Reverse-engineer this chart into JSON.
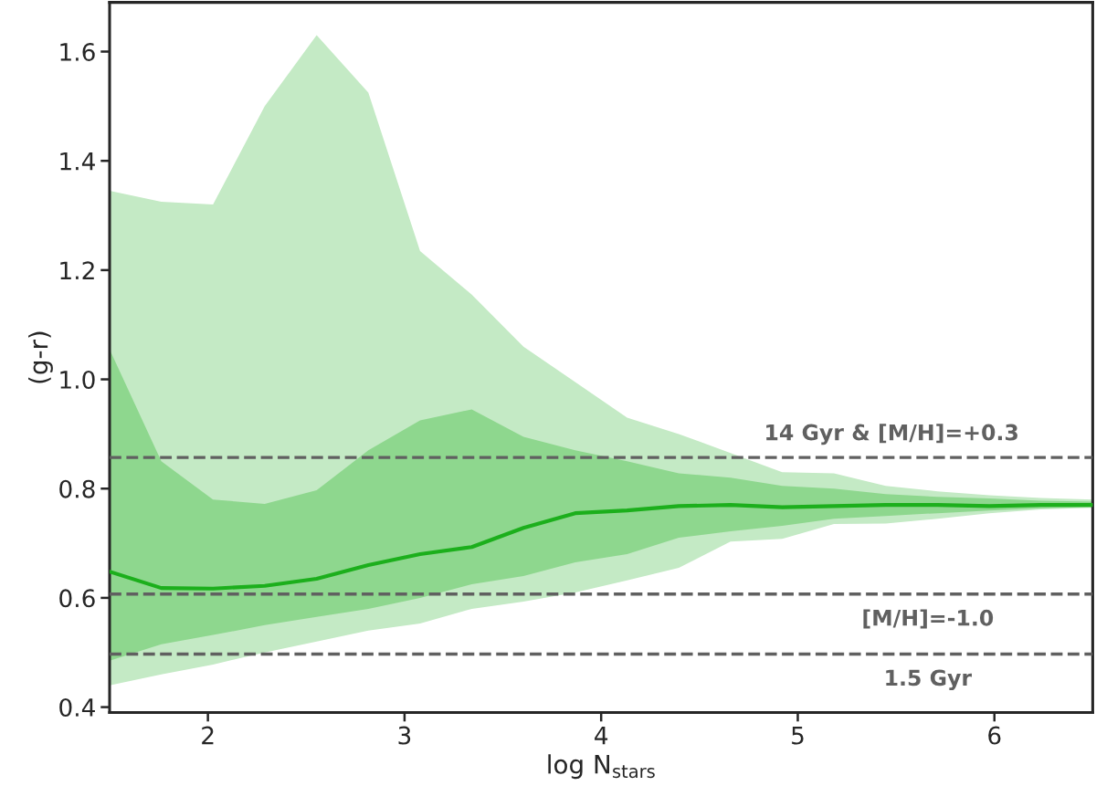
{
  "chart_data": {
    "type": "line",
    "xlabel": "log N$_{stars}$",
    "ylabel": "(g-r)",
    "x": [
      1.5,
      1.763,
      2.026,
      2.289,
      2.553,
      2.816,
      3.079,
      3.342,
      3.605,
      3.868,
      4.132,
      4.395,
      4.658,
      4.921,
      5.184,
      5.447,
      5.711,
      5.974,
      6.237,
      6.5
    ],
    "series": [
      {
        "color": "#c4eac5",
        "values": [
          null,
          null,
          null,
          null,
          null,
          null,
          null,
          null,
          null,
          null,
          null,
          null,
          null,
          null,
          null,
          null,
          null,
          null,
          null,
          null
        ],
        "lower": [
          0.44,
          0.46,
          0.478,
          0.5,
          0.52,
          0.54,
          0.553,
          0.58,
          0.593,
          0.61,
          0.632,
          0.655,
          0.703,
          0.708,
          0.735,
          0.736,
          0.745,
          0.755,
          0.762,
          0.765
        ],
        "upper": [
          1.345,
          1.325,
          1.32,
          1.5,
          1.63,
          1.525,
          1.235,
          1.155,
          1.06,
          0.995,
          0.93,
          0.9,
          0.865,
          0.83,
          0.828,
          0.805,
          0.795,
          0.788,
          0.783,
          0.78
        ]
      },
      {
        "color": "#1caf1c",
        "values": [
          0.648,
          0.618,
          0.617,
          0.622,
          0.635,
          0.66,
          0.68,
          0.693,
          0.728,
          0.755,
          0.76,
          0.768,
          0.77,
          0.766,
          0.768,
          0.77,
          0.77,
          0.768,
          0.77,
          0.77
        ],
        "lower": [
          0.485,
          0.515,
          0.532,
          0.55,
          0.565,
          0.58,
          0.6,
          0.625,
          0.64,
          0.665,
          0.68,
          0.71,
          0.722,
          0.732,
          0.745,
          0.75,
          0.755,
          0.76,
          0.764,
          0.766
        ],
        "upper": [
          1.055,
          0.85,
          0.78,
          0.772,
          0.797,
          0.87,
          0.925,
          0.945,
          0.895,
          0.87,
          0.85,
          0.828,
          0.82,
          0.805,
          0.8,
          0.79,
          0.785,
          0.782,
          0.778,
          0.776
        ]
      }
    ],
    "ref_lines": [
      {
        "axis": "y",
        "value": 0.857,
        "color": "#606060",
        "line_style": "dashed"
      },
      {
        "axis": "y",
        "value": 0.607,
        "color": "#606060",
        "line_style": "dashed"
      },
      {
        "axis": "y",
        "value": 0.497,
        "color": "#606060",
        "line_style": "dashed"
      }
    ],
    "annotations": [
      "14 Gyr & [M/H]=+0.3",
      "[M/H]=-1.0",
      "1.5 Gyr"
    ],
    "xlim": [
      1.5,
      6.5
    ],
    "xticks": [
      2,
      3,
      4,
      5,
      6
    ],
    "ylim": [
      0.39,
      1.69
    ],
    "yticks": [
      0.4,
      0.6,
      0.8,
      {
        "value": 1.0,
        "label": "1.0"
      },
      1.2,
      1.4,
      1.6
    ],
    "grid": false,
    "line_style": "solid",
    "marker": "none"
  }
}
